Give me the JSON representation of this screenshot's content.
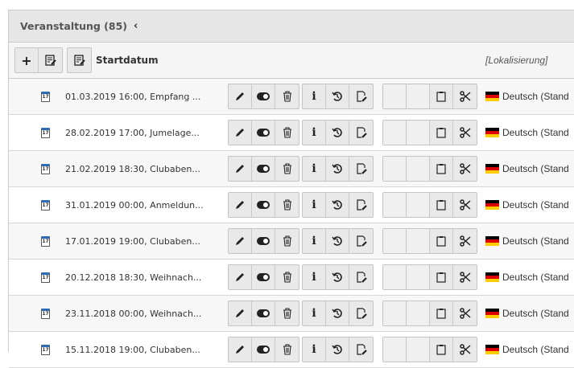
{
  "panel": {
    "title": "Veranstaltung (85)",
    "collapse_icon": "chevron-left-icon"
  },
  "table_header": {
    "add_icon": "plus-icon",
    "edit_columns_icon": "edit-list-icon",
    "column_label": "Startdatum",
    "localization_label": "[Lokalisierung]"
  },
  "rows": [
    {
      "title": "01.03.2019 16:00, Empfang ...",
      "language": "Deutsch (Stand"
    },
    {
      "title": "28.02.2019 17:00, Jumelage...",
      "language": "Deutsch (Stand"
    },
    {
      "title": "21.02.2019 18:30, Clubaben...",
      "language": "Deutsch (Stand"
    },
    {
      "title": "31.01.2019 00:00, Anmeldun...",
      "language": "Deutsch (Stand"
    },
    {
      "title": "17.01.2019 19:00, Clubaben...",
      "language": "Deutsch (Stand"
    },
    {
      "title": "20.12.2018 18:30, Weihnach...",
      "language": "Deutsch (Stand"
    },
    {
      "title": "23.11.2018 00:00, Weihnach...",
      "language": "Deutsch (Stand"
    },
    {
      "title": "15.11.2018 19:00, Clubaben...",
      "language": "Deutsch (Stand"
    }
  ],
  "calendar_icon_text": "17",
  "colors": {
    "accent": "#2d6db5"
  }
}
